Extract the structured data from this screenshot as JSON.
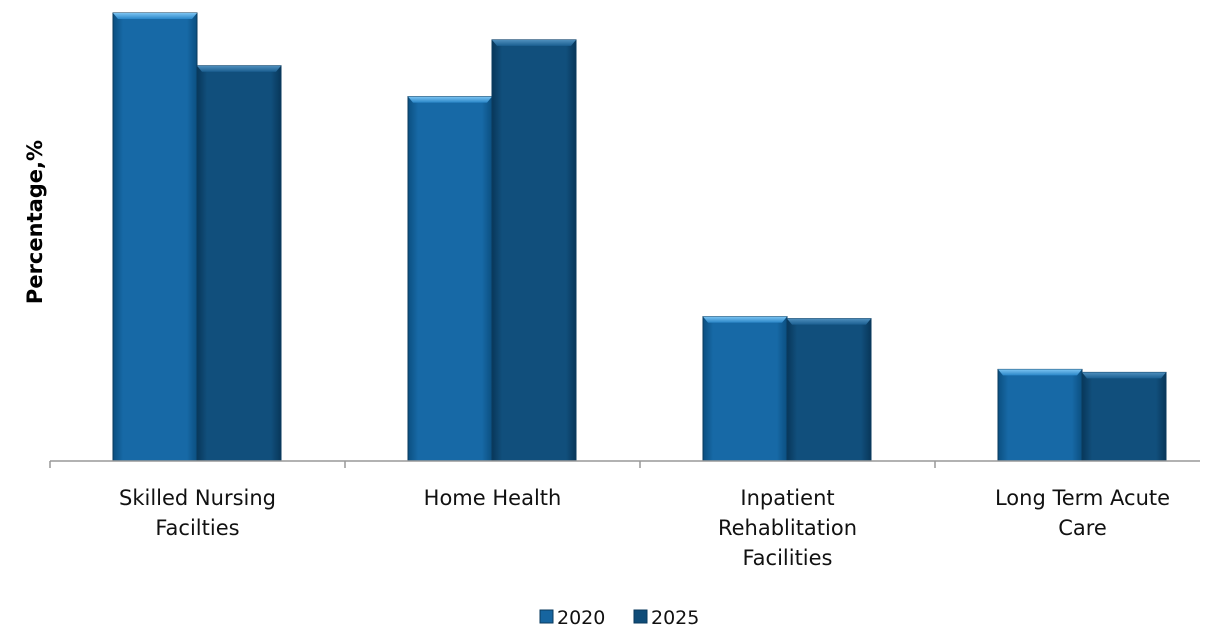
{
  "chart_data": {
    "type": "bar",
    "title": "",
    "xlabel": "",
    "ylabel": "Percentage,%",
    "categories": [
      [
        "Skilled Nursing",
        "Facilties"
      ],
      [
        "Home Health"
      ],
      [
        "Inpatient",
        "Rehablitation",
        "Facilities"
      ],
      [
        "Long Term Acute",
        "Care"
      ]
    ],
    "series": [
      {
        "name": "2020",
        "color": "#1665a0",
        "values": [
          45,
          36.6,
          14.5,
          9.2
        ]
      },
      {
        "name": "2025",
        "color": "#0f4c78",
        "values": [
          39.7,
          42.3,
          14.3,
          8.9
        ]
      }
    ],
    "ylim": [
      0,
      45.5
    ],
    "grid": false,
    "legend_position": "bottom-center"
  }
}
